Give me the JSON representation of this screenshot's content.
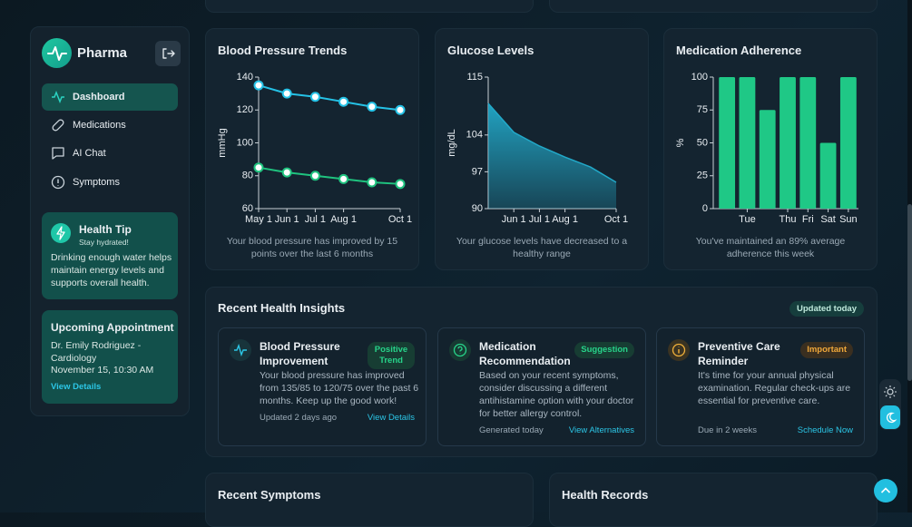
{
  "sidebar": {
    "brand": "Pharma",
    "nav": [
      "Dashboard",
      "Medications",
      "AI Chat",
      "Symptoms"
    ],
    "health_tip": {
      "title": "Health Tip",
      "subtitle": "Stay hydrated!",
      "body": "Drinking enough water helps maintain energy levels and supports overall health."
    },
    "appointment": {
      "title": "Upcoming Appointment",
      "doctor": "Dr. Emily Rodriguez - Cardiology",
      "time": "November 15, 10:30 AM",
      "link": "View Details"
    }
  },
  "chart_data": [
    {
      "type": "line",
      "title": "Blood Pressure Trends",
      "y_label": "mmHg",
      "categories": [
        "May 1",
        "Jun 1",
        "Jul 1",
        "Aug 1",
        null,
        "Oct 1"
      ],
      "series": [
        {
          "color": "#25c2e6",
          "values": [
            135,
            130,
            128,
            125,
            122,
            120
          ]
        },
        {
          "color": "#1fc37f",
          "values": [
            85,
            82,
            80,
            78,
            76,
            75
          ]
        }
      ],
      "ylim": [
        60,
        140
      ],
      "yticks": [
        60,
        80,
        100,
        120,
        140
      ],
      "caption": "Your blood pressure has improved by 15 points over the last 6 months"
    },
    {
      "type": "area",
      "title": "Glucose Levels",
      "y_label": "mg/dL",
      "categories": [
        null,
        "Jun 1",
        "Jul 1",
        "Aug 1",
        null,
        "Oct 1"
      ],
      "values": [
        110,
        104.5,
        101.9,
        99.8,
        97.9,
        95
      ],
      "color": "#22a9c9",
      "ylim": [
        90,
        115
      ],
      "yticks": [
        90,
        97,
        104,
        115
      ],
      "caption": "Your glucose levels have decreased to a healthy range"
    },
    {
      "type": "bar",
      "title": "Medication Adherence",
      "y_label": "%",
      "categories": [
        null,
        "Tue",
        null,
        "Thu",
        "Fri",
        "Sat",
        "Sun"
      ],
      "values": [
        100,
        100,
        75,
        100,
        100,
        50,
        100
      ],
      "color": "#1fc886",
      "ylim": [
        0,
        100
      ],
      "yticks": [
        0,
        25,
        50,
        75,
        100
      ],
      "caption": "You've maintained an 89% average adherence this week"
    }
  ],
  "insights": {
    "title": "Recent Health Insights",
    "badge": "Updated today",
    "cards": [
      {
        "title": "Blood Pressure Improvement",
        "tag": "Positive Trend",
        "body": "Your blood pressure has improved from 135/85 to 120/75 over the past 6 months. Keep up the good work!",
        "meta": "Updated 2 days ago",
        "link": "View Details"
      },
      {
        "title": "Medication Recommendation",
        "tag": "Suggestion",
        "body": "Based on your recent symptoms, consider discussing a different antihistamine option with your doctor for better allergy control.",
        "meta": "Generated today",
        "link": "View Alternatives"
      },
      {
        "title": "Preventive Care Reminder",
        "tag": "Important",
        "body": "It's time for your annual physical examination. Regular check-ups are essential for preventive care.",
        "meta": "Due in 2 weeks",
        "link": "Schedule Now"
      }
    ]
  },
  "bottom": {
    "symptoms_title": "Recent Symptoms",
    "records_title": "Health Records"
  }
}
